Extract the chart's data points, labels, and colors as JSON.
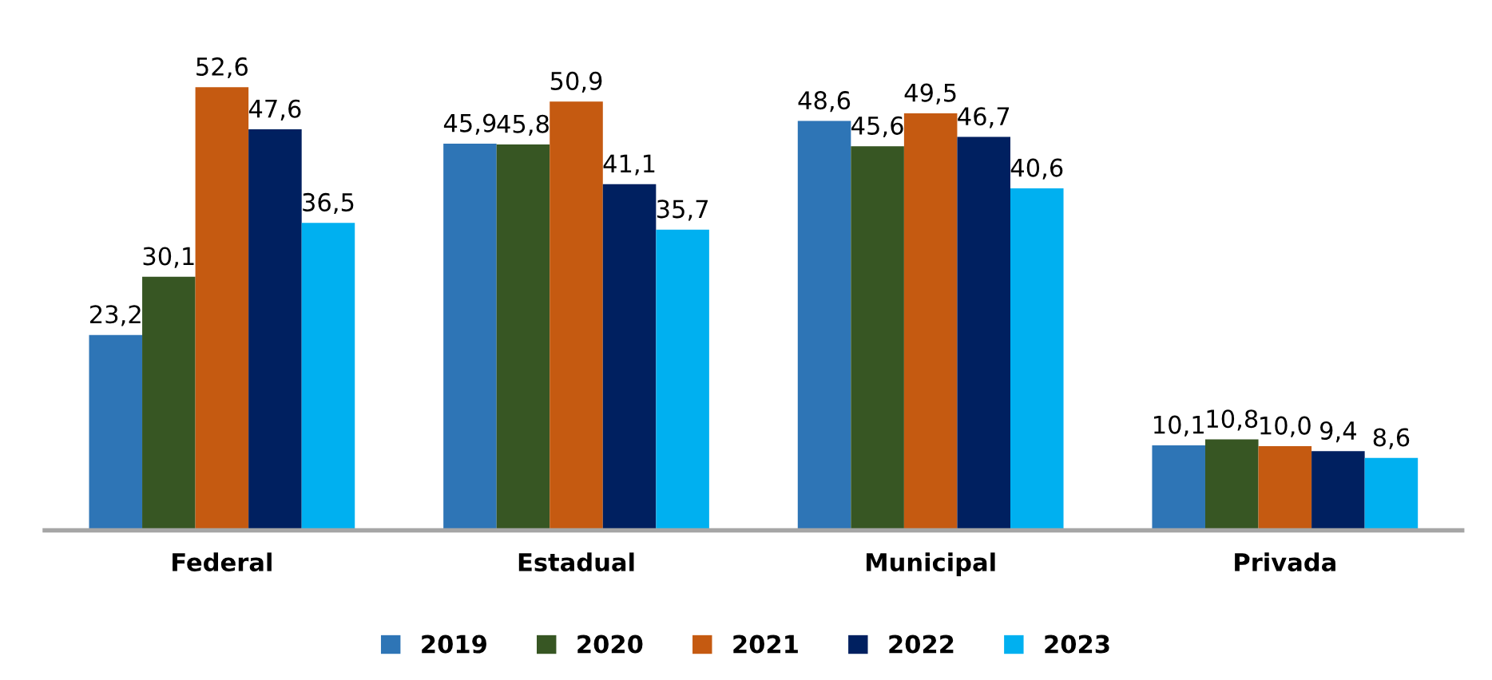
{
  "chart_data": {
    "type": "bar",
    "categories": [
      "Federal",
      "Estadual",
      "Municipal",
      "Privada"
    ],
    "series": [
      {
        "name": "2019",
        "color": "#2e75b6",
        "values": [
          23.2,
          45.9,
          48.6,
          10.1
        ],
        "value_labels": [
          "23,2",
          "45,9",
          "48,6",
          "10,1"
        ]
      },
      {
        "name": "2020",
        "color": "#375623",
        "values": [
          30.1,
          45.8,
          45.6,
          10.8
        ],
        "value_labels": [
          "30,1",
          "45,8",
          "45,6",
          "10,8"
        ]
      },
      {
        "name": "2021",
        "color": "#c55a11",
        "values": [
          52.6,
          50.9,
          49.5,
          10.0
        ],
        "value_labels": [
          "52,6",
          "50,9",
          "49,5",
          "10,0"
        ]
      },
      {
        "name": "2022",
        "color": "#002060",
        "values": [
          47.6,
          41.1,
          46.7,
          9.4
        ],
        "value_labels": [
          "47,6",
          "41,1",
          "46,7",
          "9,4"
        ]
      },
      {
        "name": "2023",
        "color": "#00b0f0",
        "values": [
          36.5,
          35.7,
          40.6,
          8.6
        ],
        "value_labels": [
          "36,5",
          "35,7",
          "40,6",
          "8,6"
        ]
      }
    ],
    "legend": "bottom",
    "grid": false
  }
}
